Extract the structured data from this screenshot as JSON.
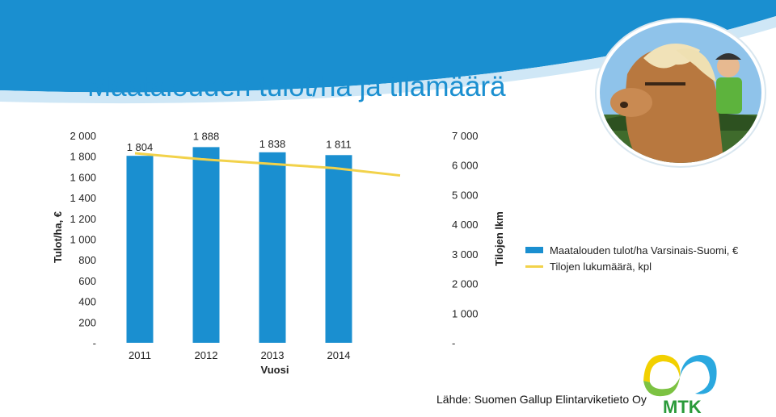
{
  "title": "Maatalouden tulot/ha ja tilamäärä",
  "source": "Lähde: Suomen Gallup Elintarviketieto Oy",
  "logo_text": "MTK",
  "colors": {
    "bar": "#1a8fd0",
    "line": "#f2d24a",
    "title": "#1a8fd0",
    "header_band": "#1a8fd0",
    "logo_green": "#2a9a3a"
  },
  "chart_data": {
    "type": "bar",
    "xlabel": "Vuosi",
    "ylabel": "Tulot/ha, €",
    "y2label": "Tilojen lkm",
    "categories": [
      "2011",
      "2012",
      "2013",
      "2014"
    ],
    "ylim": [
      0,
      2000
    ],
    "y2lim": [
      0,
      7000
    ],
    "y_ticks": [
      "-",
      "200",
      "400",
      "600",
      "800",
      "1 000",
      "1 200",
      "1 400",
      "1 600",
      "1 800",
      "2 000"
    ],
    "y2_ticks": [
      "-",
      "1 000",
      "2 000",
      "3 000",
      "4 000",
      "5 000",
      "6 000",
      "7 000"
    ],
    "legend_position": "right",
    "series": [
      {
        "name": "Maatalouden tulot/ha Varsinais-Suomi, €",
        "type": "bar",
        "axis": "left",
        "values": [
          1804,
          1888,
          1838,
          1811
        ],
        "labels": [
          "1 804",
          "1 888",
          "1 838",
          "1 811"
        ]
      },
      {
        "name": "Tilojen lukumäärä, kpl",
        "type": "line",
        "axis": "right",
        "x": [
          "2011",
          "2012",
          "2013",
          "2014",
          "2015"
        ],
        "values": [
          6400,
          6200,
          6050,
          5900,
          5650
        ]
      }
    ]
  }
}
